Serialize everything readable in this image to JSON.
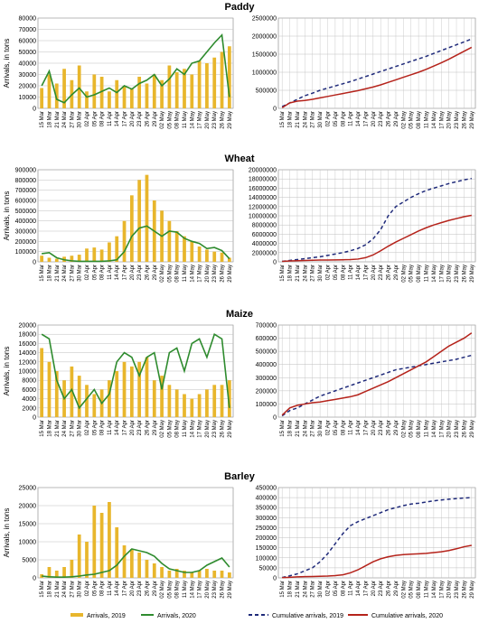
{
  "colors": {
    "bars2019": "#e8b62c",
    "line2020": "#2e8b2e",
    "cum2019": "#1f2a7a",
    "cum2020": "#b5231b",
    "grid": "#bfbfbf",
    "axis": "#808080"
  },
  "dates": [
    "15 Mar",
    "18 Mar",
    "21 Mar",
    "24 Mar",
    "27 Mar",
    "30 Mar",
    "02 Apr",
    "05 Apr",
    "08 Apr",
    "11 Apr",
    "14 Apr",
    "17 Apr",
    "20 Apr",
    "23 Apr",
    "26 Apr",
    "29 Apr",
    "02 May",
    "05 May",
    "08 May",
    "11 May",
    "14 May",
    "17 May",
    "20 May",
    "23 May",
    "26 May",
    "29 May"
  ],
  "legend": {
    "bars2019": "Arrivals, 2019",
    "line2020": "Arrivals, 2020",
    "cum2019": "Cumulative arrivals, 2019",
    "cum2020": "Cumulative arrivals, 2020"
  },
  "chart_data": [
    {
      "type": "bar",
      "title": "Paddy",
      "ylabel": "Arrivals, in tons",
      "ylim": [
        0,
        80000
      ],
      "yticks": [
        0,
        10000,
        20000,
        30000,
        40000,
        50000,
        60000,
        70000,
        80000
      ],
      "x_labels": [
        "15 Mar",
        "18 Mar",
        "21 Mar",
        "24 Mar",
        "27 Mar",
        "30 Mar",
        "02 Apr",
        "05 Apr",
        "08 Apr",
        "11 Apr",
        "14 Apr",
        "17 Apr",
        "20 Apr",
        "23 Apr",
        "26 Apr",
        "29 Apr",
        "02 May",
        "05 May",
        "08 May",
        "11 May",
        "14 May",
        "17 May",
        "20 May",
        "23 May",
        "26 May",
        "29 May"
      ],
      "series": [
        {
          "name": "Arrivals, 2019",
          "values": [
            18000,
            30000,
            22000,
            35000,
            25000,
            38000,
            15000,
            30000,
            28000,
            15000,
            25000,
            20000,
            18000,
            28000,
            22000,
            30000,
            25000,
            38000,
            32000,
            35000,
            30000,
            42000,
            40000,
            45000,
            50000,
            55000
          ]
        },
        {
          "name": "Arrivals, 2020",
          "values": [
            20000,
            33000,
            8000,
            5000,
            12000,
            18000,
            10000,
            12000,
            15000,
            18000,
            14000,
            20000,
            17000,
            22000,
            25000,
            30000,
            20000,
            26000,
            35000,
            30000,
            40000,
            42000,
            50000,
            58000,
            65000,
            10000
          ]
        }
      ]
    },
    {
      "type": "line",
      "title": "",
      "ylim": [
        0,
        2500000
      ],
      "yticks": [
        0,
        500000,
        1000000,
        1500000,
        2000000,
        2500000
      ],
      "x_labels": [
        "15 Mar",
        "18 Mar",
        "21 Mar",
        "24 Mar",
        "27 Mar",
        "30 Mar",
        "02 Apr",
        "05 Apr",
        "08 Apr",
        "11 Apr",
        "14 Apr",
        "17 Apr",
        "20 Apr",
        "23 Apr",
        "26 Apr",
        "29 Apr",
        "02 May",
        "05 May",
        "08 May",
        "11 May",
        "14 May",
        "17 May",
        "20 May",
        "23 May",
        "26 May",
        "29 May"
      ],
      "series": [
        {
          "name": "Cumulative arrivals, 2019",
          "values": [
            50000,
            150000,
            250000,
            350000,
            420000,
            500000,
            560000,
            620000,
            680000,
            740000,
            810000,
            880000,
            950000,
            1020000,
            1090000,
            1160000,
            1230000,
            1300000,
            1370000,
            1440000,
            1520000,
            1600000,
            1680000,
            1760000,
            1840000,
            1920000
          ]
        },
        {
          "name": "Cumulative arrivals, 2020",
          "values": [
            20000,
            150000,
            200000,
            220000,
            250000,
            290000,
            330000,
            370000,
            410000,
            450000,
            490000,
            540000,
            590000,
            650000,
            720000,
            790000,
            860000,
            930000,
            1000000,
            1080000,
            1170000,
            1260000,
            1360000,
            1470000,
            1580000,
            1690000
          ]
        }
      ]
    },
    {
      "type": "bar",
      "title": "Wheat",
      "ylabel": "Arrivals, in tons",
      "ylim": [
        0,
        900000
      ],
      "yticks": [
        0,
        100000,
        200000,
        300000,
        400000,
        500000,
        600000,
        700000,
        800000,
        900000
      ],
      "x_labels": [
        "15 Mar",
        "18 Mar",
        "21 Mar",
        "24 Mar",
        "27 Mar",
        "30 Mar",
        "02 Apr",
        "05 Apr",
        "08 Apr",
        "11 Apr",
        "14 Apr",
        "17 Apr",
        "20 Apr",
        "23 Apr",
        "26 Apr",
        "29 Apr",
        "02 May",
        "05 May",
        "08 May",
        "11 May",
        "14 May",
        "17 May",
        "20 May",
        "23 May",
        "26 May",
        "29 May"
      ],
      "series": [
        {
          "name": "Arrivals, 2019",
          "values": [
            60000,
            40000,
            30000,
            50000,
            60000,
            70000,
            130000,
            140000,
            120000,
            190000,
            250000,
            400000,
            650000,
            800000,
            850000,
            600000,
            500000,
            400000,
            300000,
            250000,
            200000,
            150000,
            120000,
            100000,
            90000,
            40000
          ]
        },
        {
          "name": "Arrivals, 2020",
          "values": [
            80000,
            90000,
            40000,
            20000,
            10000,
            5000,
            5000,
            5000,
            5000,
            10000,
            20000,
            100000,
            250000,
            330000,
            350000,
            300000,
            250000,
            300000,
            290000,
            230000,
            200000,
            180000,
            130000,
            140000,
            110000,
            30000
          ]
        }
      ]
    },
    {
      "type": "line",
      "title": "",
      "ylim": [
        0,
        20000000
      ],
      "yticks": [
        0,
        2000000,
        4000000,
        6000000,
        8000000,
        10000000,
        12000000,
        14000000,
        16000000,
        18000000,
        20000000
      ],
      "x_labels": [
        "15 Mar",
        "18 Mar",
        "21 Mar",
        "24 Mar",
        "27 Mar",
        "30 Mar",
        "02 Apr",
        "05 Apr",
        "08 Apr",
        "11 Apr",
        "14 Apr",
        "17 Apr",
        "20 Apr",
        "23 Apr",
        "26 Apr",
        "29 Apr",
        "02 May",
        "05 May",
        "08 May",
        "11 May",
        "14 May",
        "17 May",
        "20 May",
        "23 May",
        "26 May",
        "29 May"
      ],
      "series": [
        {
          "name": "Cumulative arrivals, 2019",
          "values": [
            100000,
            300000,
            500000,
            700000,
            900000,
            1100000,
            1400000,
            1700000,
            2000000,
            2400000,
            2900000,
            3700000,
            5000000,
            7000000,
            10000000,
            12000000,
            13000000,
            14000000,
            14800000,
            15500000,
            16000000,
            16500000,
            17000000,
            17400000,
            17800000,
            18100000
          ]
        },
        {
          "name": "Cumulative arrivals, 2020",
          "values": [
            100000,
            200000,
            250000,
            300000,
            350000,
            380000,
            400000,
            420000,
            450000,
            500000,
            600000,
            900000,
            1500000,
            2400000,
            3400000,
            4300000,
            5100000,
            5900000,
            6700000,
            7400000,
            8000000,
            8500000,
            9000000,
            9400000,
            9800000,
            10100000
          ]
        }
      ]
    },
    {
      "type": "bar",
      "title": "Maize",
      "ylabel": "Arrivals, in tons",
      "ylim": [
        0,
        20000
      ],
      "yticks": [
        0,
        2000,
        4000,
        6000,
        8000,
        10000,
        12000,
        14000,
        16000,
        18000,
        20000
      ],
      "x_labels": [
        "15 Mar",
        "18 Mar",
        "21 Mar",
        "24 Mar",
        "27 Mar",
        "30 Mar",
        "02 Apr",
        "05 Apr",
        "08 Apr",
        "11 Apr",
        "14 Apr",
        "17 Apr",
        "20 Apr",
        "23 Apr",
        "26 Apr",
        "29 Apr",
        "02 May",
        "05 May",
        "08 May",
        "11 May",
        "14 May",
        "17 May",
        "20 May",
        "23 May",
        "26 May",
        "29 May"
      ],
      "series": [
        {
          "name": "Arrivals, 2019",
          "values": [
            15000,
            12000,
            10000,
            8000,
            11000,
            9000,
            7000,
            5000,
            6000,
            8000,
            10000,
            12000,
            11000,
            12000,
            13000,
            8000,
            9000,
            7000,
            6000,
            5000,
            4000,
            5000,
            6000,
            7000,
            7000,
            8000
          ]
        },
        {
          "name": "Arrivals, 2020",
          "values": [
            18000,
            17000,
            8000,
            4000,
            6000,
            2000,
            4000,
            6000,
            3000,
            5000,
            12000,
            14000,
            13000,
            9000,
            13000,
            14000,
            6000,
            14000,
            15000,
            10000,
            16000,
            17000,
            13000,
            18000,
            17000,
            2000
          ]
        }
      ]
    },
    {
      "type": "line",
      "title": "",
      "ylim": [
        0,
        700000
      ],
      "yticks": [
        0,
        100000,
        200000,
        300000,
        400000,
        500000,
        600000,
        700000
      ],
      "x_labels": [
        "15 Mar",
        "18 Mar",
        "21 Mar",
        "24 Mar",
        "27 Mar",
        "30 Mar",
        "02 Apr",
        "05 Apr",
        "08 Apr",
        "11 Apr",
        "14 Apr",
        "17 Apr",
        "20 Apr",
        "23 Apr",
        "26 Apr",
        "29 Apr",
        "02 May",
        "05 May",
        "08 May",
        "11 May",
        "14 May",
        "17 May",
        "20 May",
        "23 May",
        "26 May",
        "29 May"
      ],
      "series": [
        {
          "name": "Cumulative arrivals, 2019",
          "values": [
            10000,
            50000,
            70000,
            100000,
            130000,
            160000,
            180000,
            200000,
            220000,
            240000,
            260000,
            280000,
            300000,
            320000,
            340000,
            360000,
            370000,
            380000,
            390000,
            400000,
            410000,
            420000,
            430000,
            440000,
            455000,
            470000
          ]
        },
        {
          "name": "Cumulative arrivals, 2020",
          "values": [
            15000,
            70000,
            90000,
            100000,
            110000,
            115000,
            125000,
            135000,
            145000,
            155000,
            170000,
            195000,
            220000,
            245000,
            270000,
            300000,
            330000,
            360000,
            390000,
            420000,
            460000,
            500000,
            540000,
            570000,
            600000,
            640000
          ]
        }
      ]
    },
    {
      "type": "bar",
      "title": "Barley",
      "ylabel": "Arrivals, in tons",
      "ylim": [
        0,
        25000
      ],
      "yticks": [
        0,
        5000,
        10000,
        15000,
        20000,
        25000
      ],
      "x_labels": [
        "15 Mar",
        "18 Mar",
        "21 Mar",
        "24 Mar",
        "27 Mar",
        "30 Mar",
        "02 Apr",
        "05 Apr",
        "08 Apr",
        "11 Apr",
        "14 Apr",
        "17 Apr",
        "20 Apr",
        "23 Apr",
        "26 Apr",
        "29 Apr",
        "02 May",
        "05 May",
        "08 May",
        "11 May",
        "14 May",
        "17 May",
        "20 May",
        "23 May",
        "26 May",
        "29 May"
      ],
      "series": [
        {
          "name": "Arrivals, 2019",
          "values": [
            1000,
            3000,
            2000,
            3000,
            5000,
            12000,
            10000,
            20000,
            18000,
            21000,
            14000,
            9000,
            8000,
            7000,
            5000,
            4000,
            3000,
            2000,
            2500,
            2000,
            1500,
            2000,
            2500,
            2000,
            2000,
            1500
          ]
        },
        {
          "name": "Arrivals, 2020",
          "values": [
            500,
            300,
            200,
            200,
            300,
            500,
            800,
            1000,
            1500,
            2000,
            3500,
            6000,
            8000,
            7500,
            7000,
            6000,
            4000,
            2500,
            2000,
            1500,
            1500,
            2000,
            3500,
            4500,
            5500,
            3000
          ]
        }
      ]
    },
    {
      "type": "line",
      "title": "",
      "ylim": [
        0,
        450000
      ],
      "yticks": [
        0,
        50000,
        100000,
        150000,
        200000,
        250000,
        300000,
        350000,
        400000,
        450000
      ],
      "x_labels": [
        "15 Mar",
        "18 Mar",
        "21 Mar",
        "24 Mar",
        "27 Mar",
        "30 Mar",
        "02 Apr",
        "05 Apr",
        "08 Apr",
        "11 Apr",
        "14 Apr",
        "17 Apr",
        "20 Apr",
        "23 Apr",
        "26 Apr",
        "29 Apr",
        "02 May",
        "05 May",
        "08 May",
        "11 May",
        "14 May",
        "17 May",
        "20 May",
        "23 May",
        "26 May",
        "29 May"
      ],
      "series": [
        {
          "name": "Cumulative arrivals, 2019",
          "values": [
            2000,
            10000,
            20000,
            35000,
            50000,
            80000,
            120000,
            170000,
            220000,
            260000,
            280000,
            295000,
            310000,
            325000,
            340000,
            350000,
            360000,
            368000,
            372000,
            378000,
            384000,
            388000,
            392000,
            395000,
            398000,
            400000
          ]
        },
        {
          "name": "Cumulative arrivals, 2020",
          "values": [
            1000,
            3000,
            5000,
            6000,
            7000,
            8000,
            9000,
            11000,
            15000,
            25000,
            40000,
            60000,
            80000,
            95000,
            105000,
            112000,
            116000,
            118000,
            120000,
            122000,
            126000,
            130000,
            136000,
            145000,
            155000,
            162000
          ]
        }
      ]
    }
  ]
}
